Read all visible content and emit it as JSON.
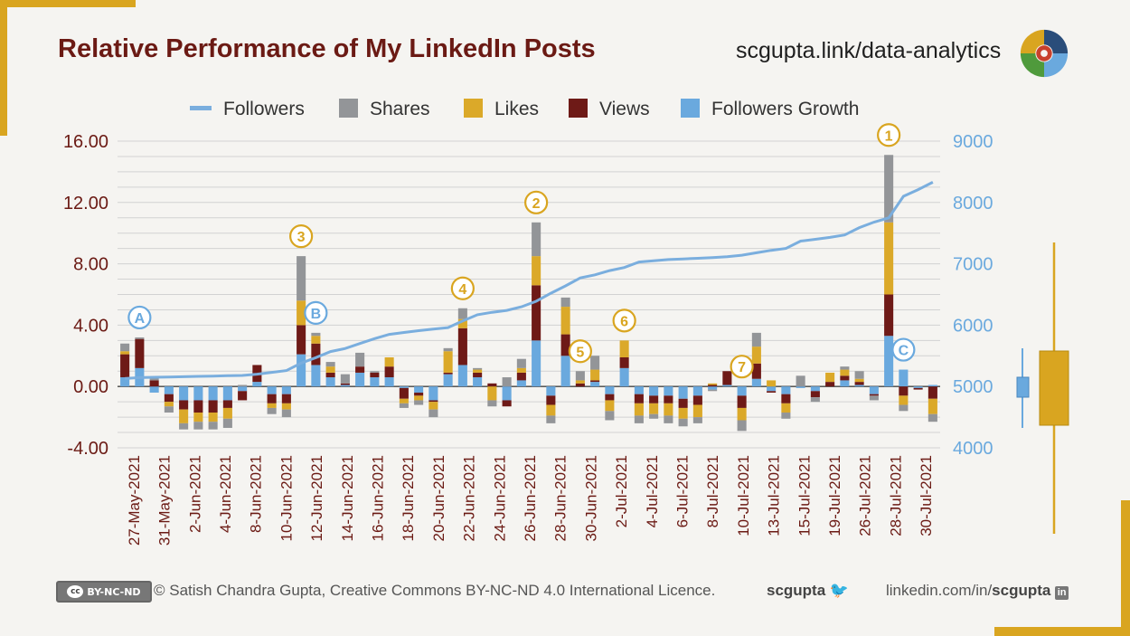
{
  "title": "Relative Performance of My LinkedIn Posts",
  "url": "scgupta.link/data-analytics",
  "footer": {
    "license_badge": "BY-NC-ND",
    "copyright": "© Satish Chandra Gupta, Creative Commons BY-NC-ND 4.0 International Licence.",
    "handle": "scgupta",
    "linkedin_prefix": "linkedin.com/in/",
    "linkedin_handle": "scgupta"
  },
  "colors": {
    "followers": "#7aaede",
    "shares": "#939598",
    "likes": "#dba929",
    "views": "#6e1a17",
    "growth": "#6aa9de",
    "title": "#6b1a14",
    "accent": "#d9a520"
  },
  "chart_data": {
    "type": "bar",
    "stacked": true,
    "legend": [
      "Followers",
      "Shares",
      "Likes",
      "Views",
      "Followers Growth"
    ],
    "legend_placement": "top",
    "y_left": {
      "ylim": [
        -4,
        16
      ],
      "ticks": [
        "-4.00",
        "0.00",
        "4.00",
        "8.00",
        "12.00",
        "16.00"
      ]
    },
    "y_right": {
      "ylim": [
        4000,
        9000
      ],
      "ticks": [
        "4000",
        "5000",
        "6000",
        "7000",
        "8000",
        "9000"
      ]
    },
    "x_tick_labels": [
      "27-May-2021",
      "31-May-2021",
      "2-Jun-2021",
      "4-Jun-2021",
      "8-Jun-2021",
      "10-Jun-2021",
      "12-Jun-2021",
      "14-Jun-2021",
      "16-Jun-2021",
      "18-Jun-2021",
      "20-Jun-2021",
      "22-Jun-2021",
      "24-Jun-2021",
      "26-Jun-2021",
      "28-Jun-2021",
      "30-Jun-2021",
      "2-Jul-2021",
      "4-Jul-2021",
      "6-Jul-2021",
      "8-Jul-2021",
      "10-Jul-2021",
      "13-Jul-2021",
      "15-Jul-2021",
      "19-Jul-2021",
      "26-Jul-2021",
      "28-Jul-2021",
      "30-Jul-2021"
    ],
    "grid": true,
    "series": [
      {
        "name": "Followers Growth",
        "values": [
          0.6,
          1.2,
          -0.4,
          -0.5,
          -0.9,
          -0.9,
          -0.9,
          -0.9,
          -0.3,
          0.3,
          -0.5,
          -0.5,
          2.1,
          1.4,
          0.6,
          0.1,
          0.9,
          0.6,
          0.6,
          -0.1,
          -0.4,
          -0.9,
          0.8,
          1.4,
          0.6,
          0.0,
          -0.9,
          0.4,
          3.0,
          -0.6,
          2.0,
          0.0,
          0.3,
          -0.5,
          1.2,
          -0.5,
          -0.6,
          -0.6,
          -0.8,
          -0.6,
          -0.2,
          0.1,
          -0.6,
          0.5,
          -0.3,
          -0.5,
          -0.1,
          -0.3,
          0.0,
          0.4,
          0.1,
          -0.5,
          3.3,
          1.1,
          -0.1,
          0.1
        ]
      },
      {
        "name": "Views",
        "values": [
          1.5,
          1.9,
          0.4,
          -0.5,
          -0.6,
          -0.8,
          -0.8,
          -0.5,
          -0.6,
          1.1,
          -0.6,
          -0.6,
          1.9,
          1.4,
          0.3,
          0.1,
          0.4,
          0.3,
          0.7,
          -0.7,
          -0.2,
          -0.1,
          0.1,
          2.4,
          0.3,
          0.2,
          -0.4,
          0.5,
          3.6,
          -0.6,
          1.4,
          0.2,
          0.1,
          -0.4,
          0.7,
          -0.6,
          -0.5,
          -0.5,
          -0.6,
          -0.6,
          0.1,
          0.9,
          -0.8,
          1.0,
          -0.1,
          -0.6,
          0.0,
          -0.4,
          0.3,
          0.3,
          0.2,
          -0.1,
          2.7,
          -0.6,
          -0.1,
          -0.8
        ]
      },
      {
        "name": "Likes",
        "values": [
          0.2,
          0.0,
          0.0,
          -0.3,
          -0.9,
          -0.6,
          -0.6,
          -0.7,
          0.0,
          0.0,
          -0.3,
          -0.4,
          1.6,
          0.5,
          0.4,
          0.0,
          0.0,
          0.0,
          0.6,
          -0.3,
          -0.3,
          -0.5,
          1.4,
          0.6,
          0.2,
          -0.9,
          0.0,
          0.3,
          1.9,
          -0.7,
          1.8,
          0.2,
          0.7,
          -0.7,
          1.1,
          -0.8,
          -0.7,
          -0.8,
          -0.7,
          -0.8,
          0.1,
          0.0,
          -0.8,
          1.1,
          0.4,
          -0.6,
          0.0,
          0.0,
          0.6,
          0.4,
          0.2,
          0.0,
          4.7,
          -0.6,
          0.0,
          -1.0
        ]
      },
      {
        "name": "Shares",
        "values": [
          0.5,
          0.1,
          0.2,
          -0.4,
          -0.4,
          -0.5,
          -0.5,
          -0.6,
          0.1,
          0.0,
          -0.4,
          -0.5,
          2.9,
          0.2,
          0.3,
          0.6,
          0.9,
          0.1,
          0.0,
          -0.3,
          -0.3,
          -0.5,
          0.2,
          0.7,
          0.1,
          -0.4,
          0.6,
          0.6,
          2.2,
          -0.5,
          0.6,
          0.6,
          0.9,
          -0.6,
          0.0,
          -0.5,
          -0.3,
          -0.5,
          -0.5,
          -0.4,
          -0.1,
          0.0,
          -0.7,
          0.9,
          0.0,
          -0.4,
          0.7,
          -0.3,
          0.0,
          0.2,
          0.5,
          -0.3,
          4.4,
          -0.4,
          0.0,
          -0.5
        ]
      },
      {
        "name": "Followers",
        "values": [
          5130,
          5145,
          5150,
          5155,
          5160,
          5165,
          5170,
          5175,
          5180,
          5200,
          5230,
          5260,
          5380,
          5470,
          5570,
          5620,
          5700,
          5780,
          5850,
          5880,
          5910,
          5935,
          5960,
          6070,
          6170,
          6210,
          6240,
          6300,
          6390,
          6520,
          6640,
          6770,
          6820,
          6890,
          6940,
          7030,
          7050,
          7070,
          7080,
          7090,
          7100,
          7115,
          7140,
          7180,
          7220,
          7250,
          7370,
          7400,
          7430,
          7470,
          7590,
          7680,
          7750,
          8100,
          8210,
          8330
        ]
      }
    ],
    "annotations": [
      {
        "label": "A",
        "style": "blue",
        "bar": 1
      },
      {
        "label": "B",
        "style": "blue",
        "bar": 13
      },
      {
        "label": "C",
        "style": "blue",
        "bar": 53
      },
      {
        "label": "1",
        "style": "gold",
        "bar": 52
      },
      {
        "label": "2",
        "style": "gold",
        "bar": 28
      },
      {
        "label": "3",
        "style": "gold",
        "bar": 12
      },
      {
        "label": "4",
        "style": "gold",
        "bar": 23
      },
      {
        "label": "5",
        "style": "gold",
        "bar": 31
      },
      {
        "label": "6",
        "style": "gold",
        "bar": 34
      },
      {
        "label": "7",
        "style": "gold",
        "bar": 42
      }
    ]
  }
}
